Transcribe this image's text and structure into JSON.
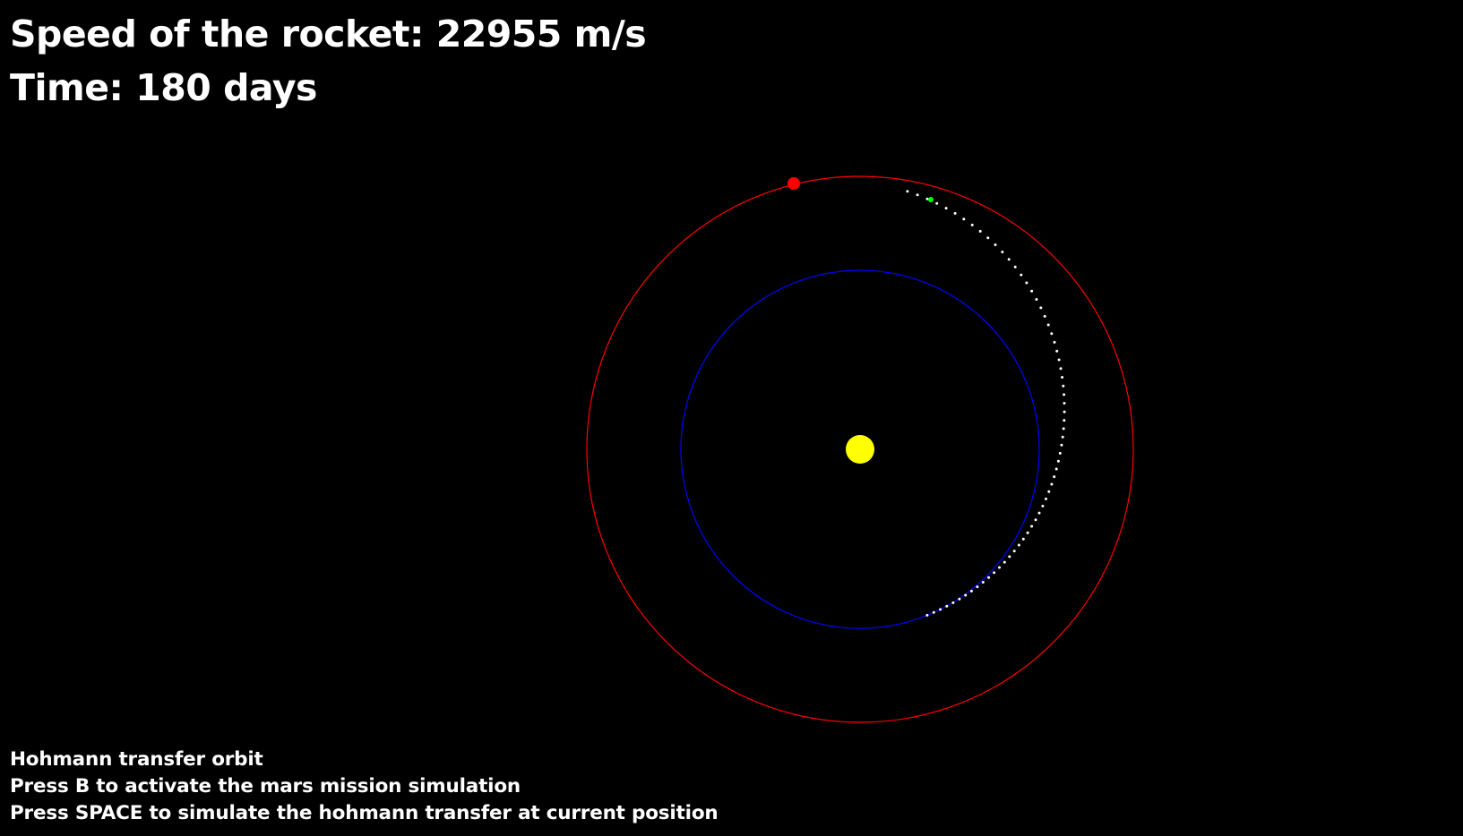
{
  "hud": {
    "speed_text": "Speed of the rocket: 22955 m/s",
    "time_text": "Time: 180 days"
  },
  "instructions": [
    "Hohmann transfer orbit",
    "Press B to activate the mars mission simulation",
    "Press SPACE to simulate the hohmann transfer at current position"
  ],
  "scene": {
    "sun_color": "#ffff00",
    "earth_orbit_color": "#0000ff",
    "mars_orbit_color": "#ff0000",
    "mars_color": "#ff0000",
    "rocket_color": "#00ff00",
    "trail_color": "#ffffff"
  }
}
